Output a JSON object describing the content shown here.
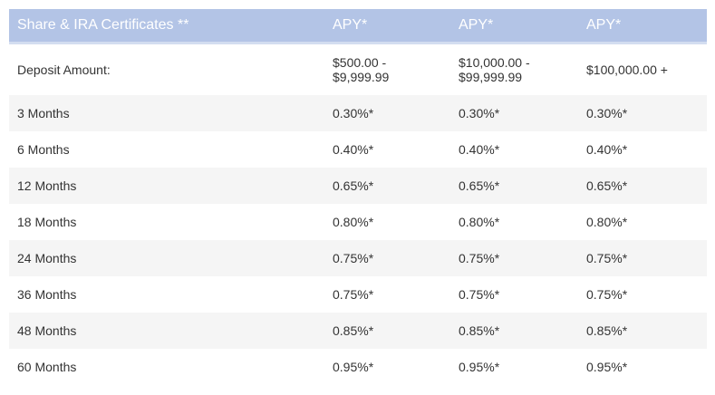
{
  "table": {
    "headers": [
      "Share & IRA Certificates **",
      "APY*",
      "APY*",
      "APY*"
    ],
    "deposit_row": {
      "label": "Deposit Amount:",
      "tiers": [
        [
          "$500.00 -",
          "$9,999.99"
        ],
        [
          "$10,000.00 -",
          "$99,999.99"
        ],
        [
          "$100,000.00 +"
        ]
      ]
    },
    "rows": [
      {
        "term": "3 Months",
        "rates": [
          "0.30%*",
          "0.30%*",
          "0.30%*"
        ]
      },
      {
        "term": "6 Months",
        "rates": [
          "0.40%*",
          "0.40%*",
          "0.40%*"
        ]
      },
      {
        "term": "12 Months",
        "rates": [
          "0.65%*",
          "0.65%*",
          "0.65%*"
        ]
      },
      {
        "term": "18 Months",
        "rates": [
          "0.80%*",
          "0.80%*",
          "0.80%*"
        ]
      },
      {
        "term": "24 Months",
        "rates": [
          "0.75%*",
          "0.75%*",
          "0.75%*"
        ]
      },
      {
        "term": "36 Months",
        "rates": [
          "0.75%*",
          "0.75%*",
          "0.75%*"
        ]
      },
      {
        "term": "48 Months",
        "rates": [
          "0.85%*",
          "0.85%*",
          "0.85%*"
        ]
      },
      {
        "term": "60 Months",
        "rates": [
          "0.95%*",
          "0.95%*",
          "0.95%*"
        ]
      }
    ]
  }
}
